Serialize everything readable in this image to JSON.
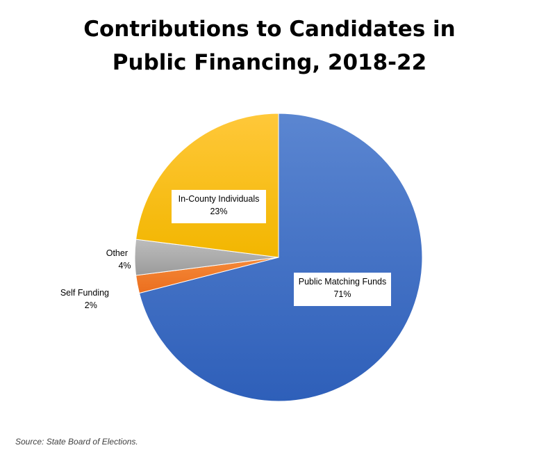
{
  "chart_data": {
    "type": "pie",
    "title_lines": [
      "Contributions to Candidates in",
      "Public Financing, 2018-22"
    ],
    "slices": [
      {
        "label": "Public Matching Funds",
        "value": 71,
        "value_label": "71%",
        "color_start": "#5B86D1",
        "color_end": "#2E5FB9"
      },
      {
        "label": "Self Funding",
        "value": 2,
        "value_label": "2%",
        "color_start": "#F58A3A",
        "color_end": "#EB6E1E"
      },
      {
        "label": "Other",
        "value": 4,
        "value_label": "4%",
        "color_start": "#BDBDBD",
        "color_end": "#9B9B9B"
      },
      {
        "label": "In-County Individuals",
        "value": 23,
        "value_label": "23%",
        "color_start": "#FFC83A",
        "color_end": "#F2B600"
      }
    ],
    "start_angle_deg": 0,
    "direction": "clockwise"
  },
  "footer": {
    "source": "Source: State Board of Elections."
  }
}
